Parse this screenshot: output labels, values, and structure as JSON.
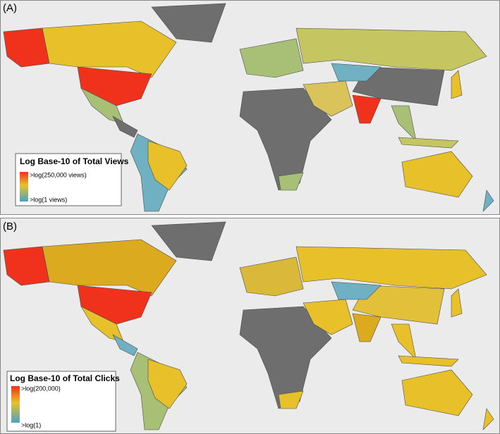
{
  "panels": [
    {
      "label": "(A)",
      "legend": {
        "title": "Log Base-10 of Total Views",
        "max_label": ">log(250,000 views)",
        "min_label": ">log(1 views)"
      }
    },
    {
      "label": "(B)",
      "legend": {
        "title": "Log Base-10 of Total Clicks",
        "max_label": ">log(200,000)",
        "min_label": ">log(1)"
      }
    }
  ]
}
